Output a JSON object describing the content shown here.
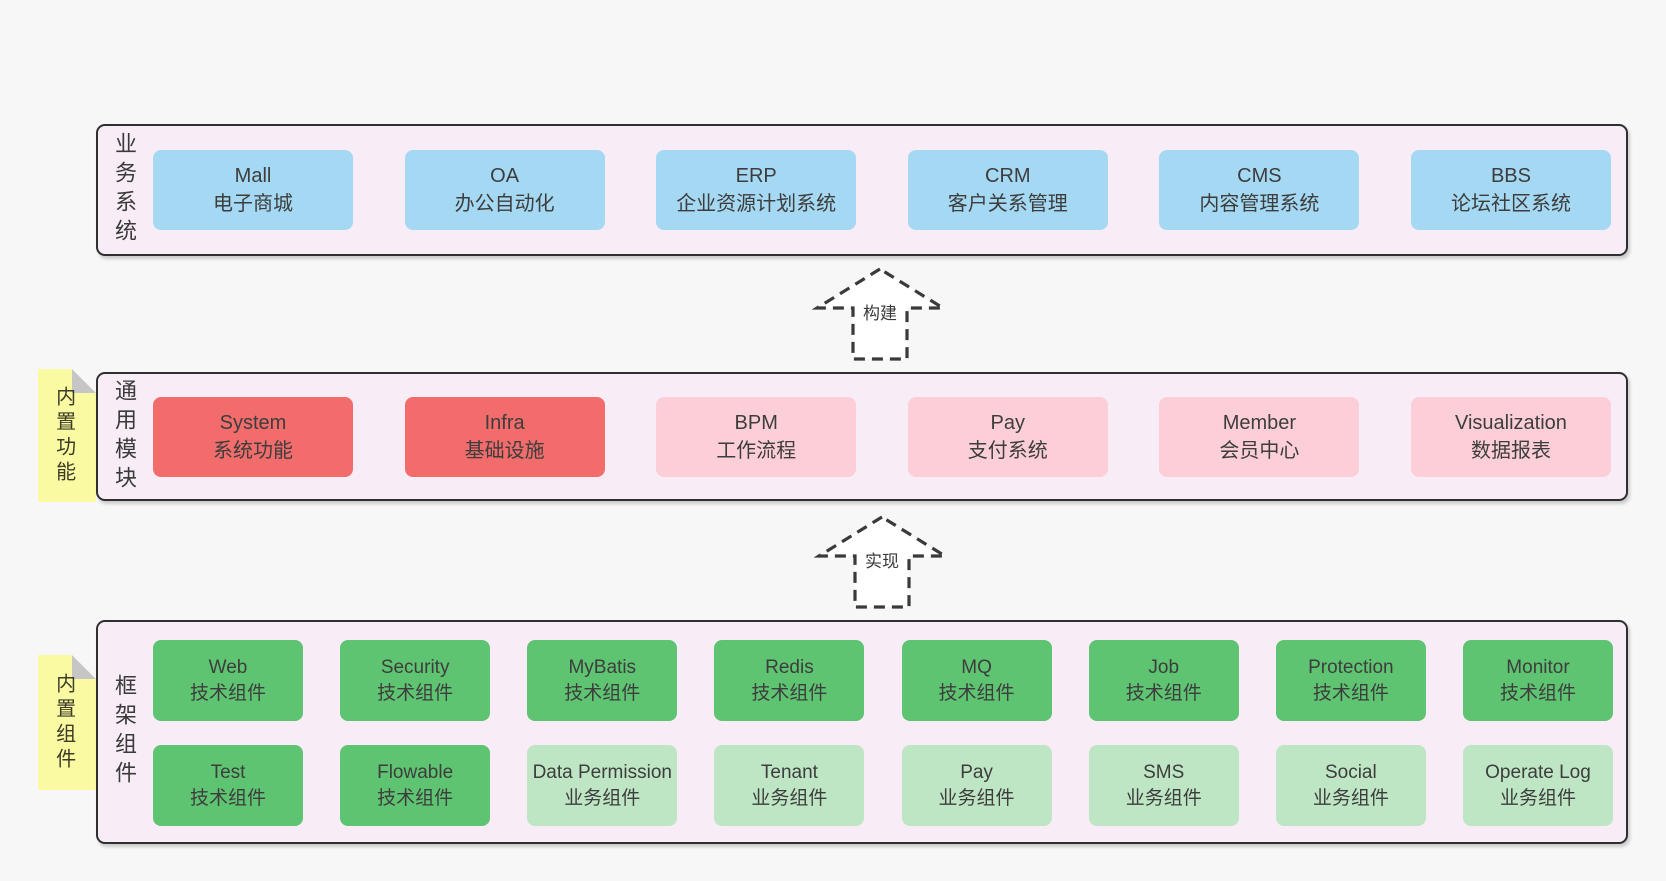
{
  "diagram": {
    "colors": {
      "page": "#f7f7f7",
      "layer_background": "#f8edf7",
      "border": "#2f2f2f",
      "text": "#3d3d3d",
      "blue": "#a5d8f2",
      "red": "#f26c6c",
      "pink": "#fccfd8",
      "green": "#5ec471",
      "lightgreen": "#bfe6c4",
      "yellow_note": "#fafaa2",
      "note_fold": "#c6c6c6"
    },
    "arrows": [
      {
        "label": "构建"
      },
      {
        "label": "实现"
      }
    ],
    "layers": [
      {
        "key": "business-systems",
        "side_label": "业务系统",
        "sticky_note": "",
        "boxes": [
          {
            "title": "Mall",
            "subtitle": "电子商城",
            "variant": "blue"
          },
          {
            "title": "OA",
            "subtitle": "办公自动化",
            "variant": "blue"
          },
          {
            "title": "ERP",
            "subtitle": "企业资源计划系统",
            "variant": "blue"
          },
          {
            "title": "CRM",
            "subtitle": "客户关系管理",
            "variant": "blue"
          },
          {
            "title": "CMS",
            "subtitle": "内容管理系统",
            "variant": "blue"
          },
          {
            "title": "BBS",
            "subtitle": "论坛社区系统",
            "variant": "blue"
          }
        ]
      },
      {
        "key": "builtin-modules",
        "side_label": "通用模块",
        "sticky_note": "内置功能",
        "boxes": [
          {
            "title": "System",
            "subtitle": "系统功能",
            "variant": "red"
          },
          {
            "title": "Infra",
            "subtitle": "基础设施",
            "variant": "red"
          },
          {
            "title": "BPM",
            "subtitle": "工作流程",
            "variant": "pink"
          },
          {
            "title": "Pay",
            "subtitle": "支付系统",
            "variant": "pink"
          },
          {
            "title": "Member",
            "subtitle": "会员中心",
            "variant": "pink"
          },
          {
            "title": "Visualization",
            "subtitle": "数据报表",
            "variant": "pink"
          }
        ]
      },
      {
        "key": "builtin-components",
        "side_label": "框架组件",
        "sticky_note": "内置组件",
        "rows": [
          [
            {
              "title": "Web",
              "subtitle": "技术组件",
              "variant": "green"
            },
            {
              "title": "Security",
              "subtitle": "技术组件",
              "variant": "green"
            },
            {
              "title": "MyBatis",
              "subtitle": "技术组件",
              "variant": "green"
            },
            {
              "title": "Redis",
              "subtitle": "技术组件",
              "variant": "green"
            },
            {
              "title": "MQ",
              "subtitle": "技术组件",
              "variant": "green"
            },
            {
              "title": "Job",
              "subtitle": "技术组件",
              "variant": "green"
            },
            {
              "title": "Protection",
              "subtitle": "技术组件",
              "variant": "green"
            },
            {
              "title": "Monitor",
              "subtitle": "技术组件",
              "variant": "green"
            }
          ],
          [
            {
              "title": "Test",
              "subtitle": "技术组件",
              "variant": "green"
            },
            {
              "title": "Flowable",
              "subtitle": "技术组件",
              "variant": "green"
            },
            {
              "title": "Data Permission",
              "subtitle": "业务组件",
              "variant": "lightgreen"
            },
            {
              "title": "Tenant",
              "subtitle": "业务组件",
              "variant": "lightgreen"
            },
            {
              "title": "Pay",
              "subtitle": "业务组件",
              "variant": "lightgreen"
            },
            {
              "title": "SMS",
              "subtitle": "业务组件",
              "variant": "lightgreen"
            },
            {
              "title": "Social",
              "subtitle": "业务组件",
              "variant": "lightgreen"
            },
            {
              "title": "Operate Log",
              "subtitle": "业务组件",
              "variant": "lightgreen"
            }
          ]
        ]
      }
    ]
  }
}
